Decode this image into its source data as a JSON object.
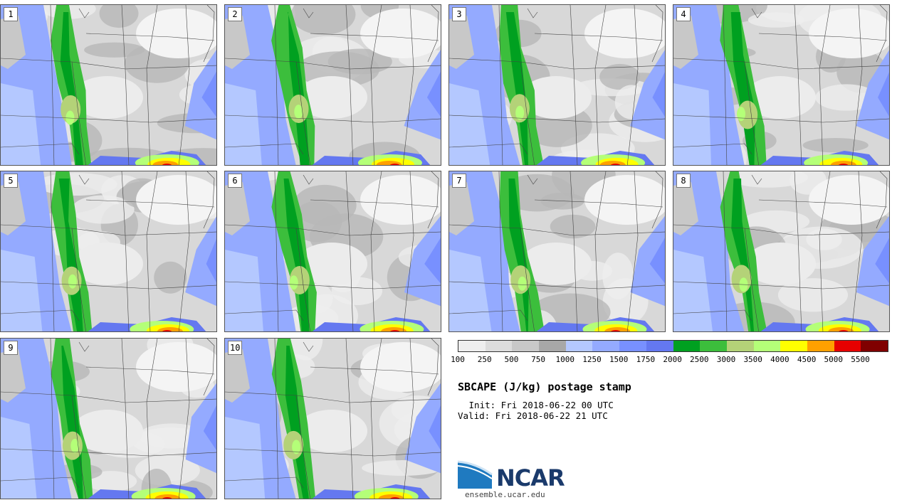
{
  "panels": [
    {
      "label": "1"
    },
    {
      "label": "2"
    },
    {
      "label": "3"
    },
    {
      "label": "4"
    },
    {
      "label": "5"
    },
    {
      "label": "6"
    },
    {
      "label": "7"
    },
    {
      "label": "8"
    },
    {
      "label": "9"
    },
    {
      "label": "10"
    }
  ],
  "colorbar": {
    "colors": [
      "#eeeeee",
      "#dcdcdc",
      "#c8c8c8",
      "#a8a8a8",
      "#b4c8ff",
      "#94aaff",
      "#7890ff",
      "#6478f0",
      "#00a020",
      "#3cbe3c",
      "#b4d278",
      "#b4ff78",
      "#ffff00",
      "#ffa000",
      "#e60000",
      "#800000"
    ],
    "labels": [
      "100",
      "250",
      "500",
      "750",
      "1000",
      "1250",
      "1500",
      "1750",
      "2000",
      "2500",
      "3000",
      "3500",
      "4000",
      "4500",
      "5000",
      "5500"
    ]
  },
  "title": "SBCAPE (J/kg) postage stamp",
  "init": " Init: Fri 2018-06-22 00 UTC",
  "valid": "Valid: Fri 2018-06-22 21 UTC",
  "logo": {
    "text": "NCAR",
    "url": "ensemble.ucar.edu"
  }
}
